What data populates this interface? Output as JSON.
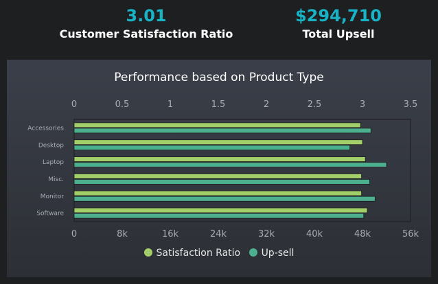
{
  "kpis": [
    {
      "value": "3.01",
      "label": "Customer Satisfaction Ratio"
    },
    {
      "value": "$294,710",
      "label": "Total Upsell"
    }
  ],
  "colors": {
    "background": "#1e1f21",
    "kpi_value": "#19b3c6",
    "satisfaction": "#a3cf6a",
    "upsell": "#4caf8e"
  },
  "chart_data": {
    "type": "bar",
    "orientation": "horizontal",
    "title": "Performance based on Product Type",
    "categories": [
      "Accessories",
      "Desktop",
      "Laptop",
      "Misc.",
      "Monitor",
      "Software"
    ],
    "series": [
      {
        "name": "Satisfaction Ratio",
        "axis": "top",
        "color": "#a3cf6a",
        "values": [
          2.98,
          3.0,
          3.03,
          2.99,
          2.99,
          3.05
        ]
      },
      {
        "name": "Up-sell",
        "axis": "bottom",
        "color": "#4caf8e",
        "values": [
          49400,
          45900,
          52000,
          49200,
          50100,
          48200
        ]
      }
    ],
    "top_axis": {
      "ticks": [
        "0",
        "0.5",
        "1",
        "1.5",
        "2",
        "2.5",
        "3",
        "3.5"
      ],
      "range": [
        0,
        3.5
      ]
    },
    "bottom_axis": {
      "ticks": [
        "0",
        "8k",
        "16k",
        "24k",
        "32k",
        "40k",
        "48k",
        "56k"
      ],
      "range": [
        0,
        56000
      ]
    },
    "legend_position": "bottom"
  }
}
